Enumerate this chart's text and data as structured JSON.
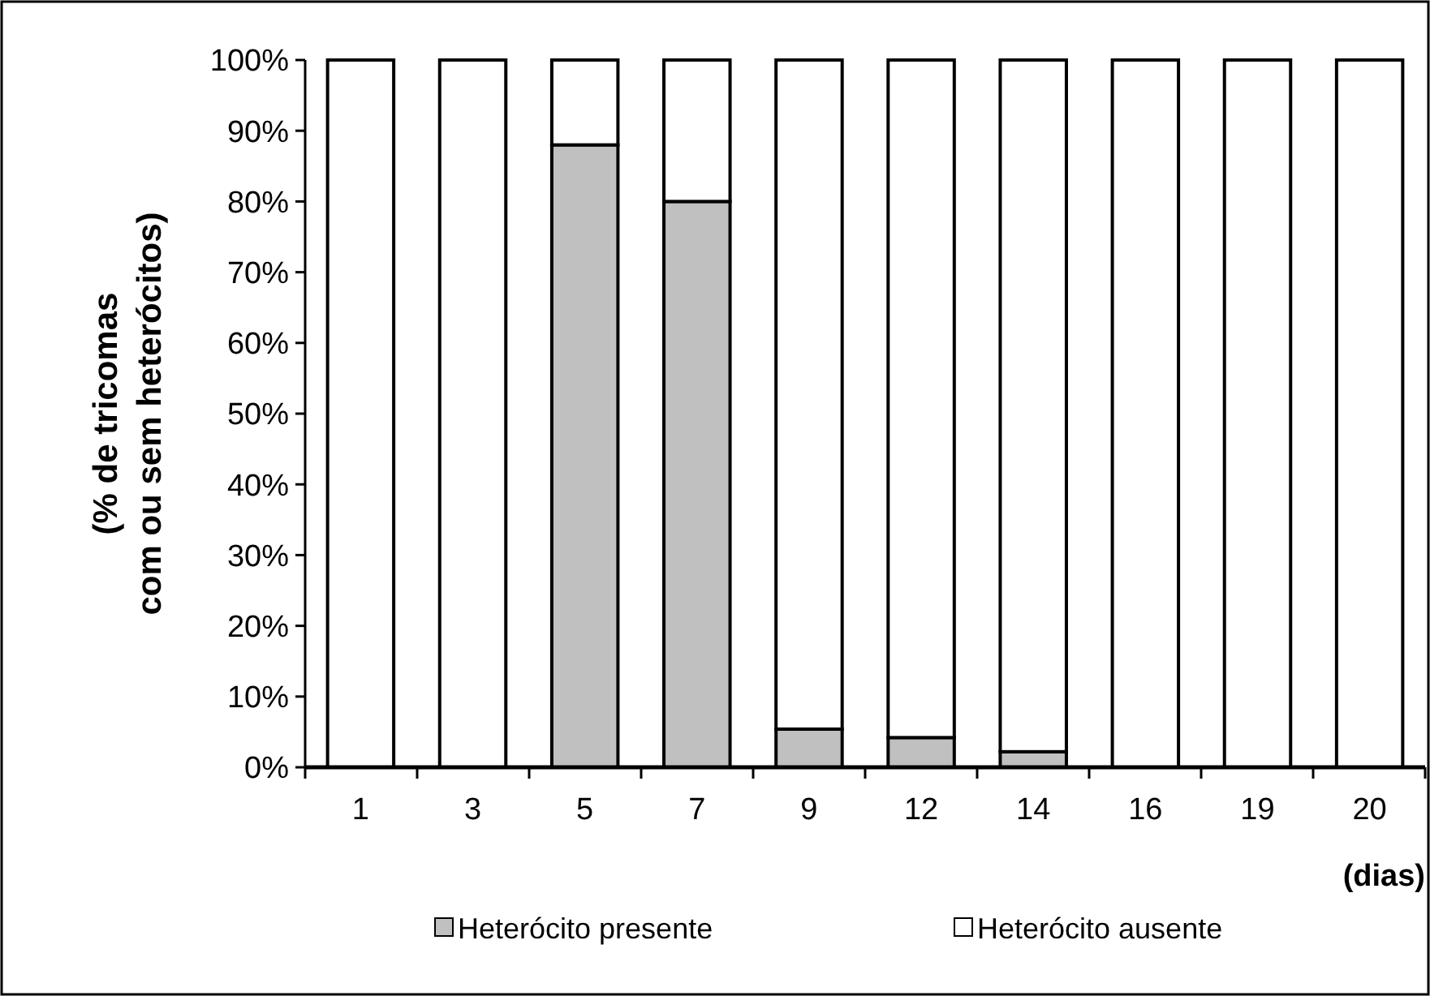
{
  "chart_data": {
    "type": "bar",
    "stacked": true,
    "xlabel": "(dias)",
    "ylabel": "(% de tricomas\ncom ou sem heterócitos)",
    "categories": [
      "1",
      "3",
      "5",
      "7",
      "9",
      "12",
      "14",
      "16",
      "19",
      "20"
    ],
    "series": [
      {
        "name": "Heterócito presente",
        "color": "#c0c0c0",
        "values": [
          0,
          0,
          88,
          80,
          5.4,
          4.2,
          2.2,
          0,
          0,
          0
        ]
      },
      {
        "name": "Heterócito ausente",
        "color": "#ffffff",
        "values": [
          100,
          100,
          12,
          20,
          94.6,
          95.8,
          97.8,
          100,
          100,
          100
        ]
      }
    ],
    "ylim": [
      0,
      100
    ],
    "yticks": [
      {
        "value": 0,
        "label": "0%"
      },
      {
        "value": 10,
        "label": "10%"
      },
      {
        "value": 20,
        "label": "20%"
      },
      {
        "value": 30,
        "label": "30%"
      },
      {
        "value": 40,
        "label": "40%"
      },
      {
        "value": 50,
        "label": "50%"
      },
      {
        "value": 60,
        "label": "60%"
      },
      {
        "value": 70,
        "label": "70%"
      },
      {
        "value": 80,
        "label": "80%"
      },
      {
        "value": 90,
        "label": "90%"
      },
      {
        "value": 100,
        "label": "100%"
      }
    ],
    "grid": false,
    "legend": "bottom"
  }
}
